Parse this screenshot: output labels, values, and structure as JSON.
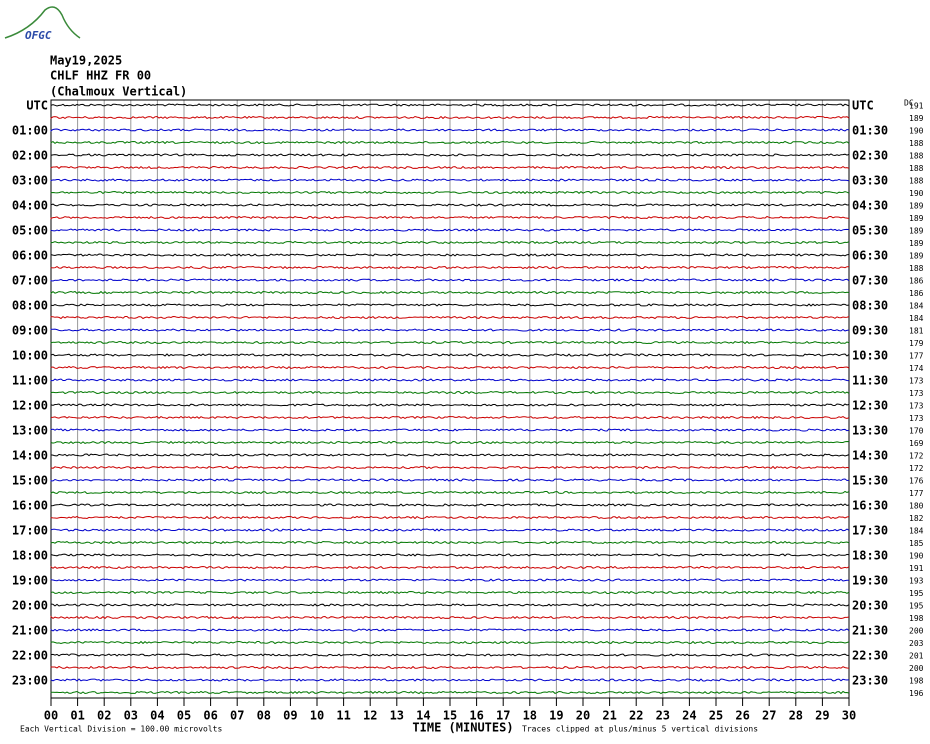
{
  "header": {
    "logo": "OFGC",
    "date": "May19,2025",
    "station": "CHLF HHZ FR 00",
    "location": "(Chalmoux Vertical)"
  },
  "left_labels": [
    "UTC",
    "01:00",
    "02:00",
    "03:00",
    "04:00",
    "05:00",
    "06:00",
    "07:00",
    "08:00",
    "09:00",
    "10:00",
    "11:00",
    "12:00",
    "13:00",
    "14:00",
    "15:00",
    "16:00",
    "17:00",
    "18:00",
    "19:00",
    "20:00",
    "21:00",
    "22:00",
    "23:00"
  ],
  "right_labels": [
    "UTC",
    "01:30",
    "02:30",
    "03:30",
    "04:30",
    "05:30",
    "06:30",
    "07:30",
    "08:30",
    "09:30",
    "10:30",
    "11:30",
    "12:30",
    "13:30",
    "14:30",
    "15:30",
    "16:30",
    "17:30",
    "18:30",
    "19:30",
    "20:30",
    "21:30",
    "22:30",
    "23:30"
  ],
  "dc_title": "DC",
  "dc_values": [
    "191",
    "189",
    "190",
    "188",
    "188",
    "188",
    "188",
    "190",
    "189",
    "189",
    "189",
    "189",
    "189",
    "188",
    "186",
    "186",
    "184",
    "184",
    "181",
    "179",
    "177",
    "174",
    "173",
    "173",
    "173",
    "173",
    "170",
    "169",
    "172",
    "172",
    "176",
    "177",
    "180",
    "182",
    "184",
    "185",
    "190",
    "191",
    "193",
    "195",
    "195",
    "198",
    "200",
    "203",
    "201",
    "200",
    "198",
    "196"
  ],
  "x_ticks": [
    "00",
    "01",
    "02",
    "03",
    "04",
    "05",
    "06",
    "07",
    "08",
    "09",
    "10",
    "11",
    "12",
    "13",
    "14",
    "15",
    "16",
    "17",
    "18",
    "19",
    "20",
    "21",
    "22",
    "23",
    "24",
    "25",
    "26",
    "27",
    "28",
    "29",
    "30"
  ],
  "footer": {
    "scale": "Each Vertical Division =  100.00 microvolts",
    "axis": "TIME (MINUTES)",
    "clip": "Traces clipped at plus/minus 5 vertical divisions"
  }
}
